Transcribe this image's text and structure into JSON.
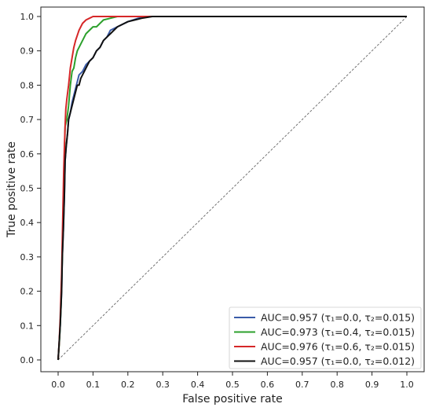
{
  "chart_data": {
    "type": "line",
    "title": "",
    "xlabel": "False positive rate",
    "ylabel": "True positive rate",
    "xlim": [
      0.0,
      1.0
    ],
    "ylim": [
      0.0,
      1.0
    ],
    "xticks": [
      "0.0",
      "0.1",
      "0.2",
      "0.3",
      "0.4",
      "0.5",
      "0.6",
      "0.7",
      "0.8",
      "0.9",
      "1.0"
    ],
    "yticks": [
      "0.0",
      "0.1",
      "0.2",
      "0.3",
      "0.4",
      "0.5",
      "0.6",
      "0.7",
      "0.8",
      "0.9",
      "1.0"
    ],
    "grid": false,
    "legend_position": "bottom-right",
    "reference_line": {
      "style": "dashed",
      "color": "#666666",
      "x": [
        0.0,
        1.0
      ],
      "y": [
        0.0,
        1.0
      ]
    },
    "series": [
      {
        "name": "AUC=0.957 (τ₁=0.0, τ₂=0.015)",
        "color": "#3a5ba8",
        "x": [
          0.0,
          0.003,
          0.006,
          0.01,
          0.012,
          0.015,
          0.018,
          0.02,
          0.023,
          0.027,
          0.03,
          0.035,
          0.04,
          0.045,
          0.05,
          0.055,
          0.06,
          0.07,
          0.075,
          0.08,
          0.09,
          0.1,
          0.11,
          0.12,
          0.13,
          0.14,
          0.15,
          0.17,
          0.2,
          0.23,
          0.26,
          0.3,
          0.5,
          1.0
        ],
        "y": [
          0.0,
          0.05,
          0.1,
          0.2,
          0.3,
          0.38,
          0.48,
          0.58,
          0.62,
          0.66,
          0.7,
          0.72,
          0.75,
          0.77,
          0.79,
          0.81,
          0.83,
          0.84,
          0.85,
          0.86,
          0.87,
          0.88,
          0.9,
          0.91,
          0.93,
          0.94,
          0.96,
          0.97,
          0.985,
          0.995,
          1.0,
          1.0,
          1.0,
          1.0
        ]
      },
      {
        "name": "AUC=0.973 (τ₁=0.4, τ₂=0.015)",
        "color": "#2ca02c",
        "x": [
          0.0,
          0.004,
          0.008,
          0.012,
          0.015,
          0.018,
          0.02,
          0.025,
          0.03,
          0.035,
          0.04,
          0.045,
          0.05,
          0.055,
          0.06,
          0.07,
          0.08,
          0.09,
          0.1,
          0.11,
          0.12,
          0.13,
          0.15,
          0.17,
          0.2,
          0.3,
          1.0
        ],
        "y": [
          0.0,
          0.06,
          0.15,
          0.3,
          0.45,
          0.6,
          0.68,
          0.7,
          0.74,
          0.8,
          0.84,
          0.85,
          0.88,
          0.9,
          0.91,
          0.93,
          0.95,
          0.96,
          0.97,
          0.97,
          0.98,
          0.99,
          0.995,
          1.0,
          1.0,
          1.0,
          1.0
        ]
      },
      {
        "name": "AUC=0.976 (τ₁=0.6, τ₂=0.015)",
        "color": "#d62728",
        "x": [
          0.0,
          0.003,
          0.006,
          0.01,
          0.013,
          0.016,
          0.018,
          0.02,
          0.022,
          0.025,
          0.03,
          0.035,
          0.04,
          0.045,
          0.05,
          0.06,
          0.07,
          0.08,
          0.09,
          0.1,
          0.12,
          0.15,
          0.2,
          0.3,
          1.0
        ],
        "y": [
          0.0,
          0.05,
          0.12,
          0.25,
          0.4,
          0.55,
          0.62,
          0.68,
          0.73,
          0.76,
          0.8,
          0.85,
          0.88,
          0.91,
          0.93,
          0.96,
          0.98,
          0.99,
          0.995,
          1.0,
          1.0,
          1.0,
          1.0,
          1.0,
          1.0
        ]
      },
      {
        "name": "AUC=0.957 (τ₁=0.0, τ₂=0.012)",
        "color": "#111111",
        "x": [
          0.0,
          0.003,
          0.006,
          0.01,
          0.012,
          0.015,
          0.018,
          0.02,
          0.023,
          0.027,
          0.03,
          0.035,
          0.04,
          0.045,
          0.05,
          0.055,
          0.06,
          0.065,
          0.07,
          0.075,
          0.08,
          0.085,
          0.09,
          0.1,
          0.11,
          0.12,
          0.13,
          0.14,
          0.15,
          0.16,
          0.17,
          0.19,
          0.2,
          0.22,
          0.24,
          0.27,
          0.3,
          0.5,
          1.0
        ],
        "y": [
          0.0,
          0.05,
          0.1,
          0.2,
          0.3,
          0.38,
          0.48,
          0.58,
          0.62,
          0.66,
          0.7,
          0.72,
          0.74,
          0.76,
          0.78,
          0.8,
          0.8,
          0.82,
          0.83,
          0.84,
          0.85,
          0.86,
          0.87,
          0.88,
          0.9,
          0.91,
          0.93,
          0.94,
          0.95,
          0.96,
          0.97,
          0.98,
          0.985,
          0.99,
          0.995,
          1.0,
          1.0,
          1.0,
          1.0
        ]
      }
    ]
  }
}
